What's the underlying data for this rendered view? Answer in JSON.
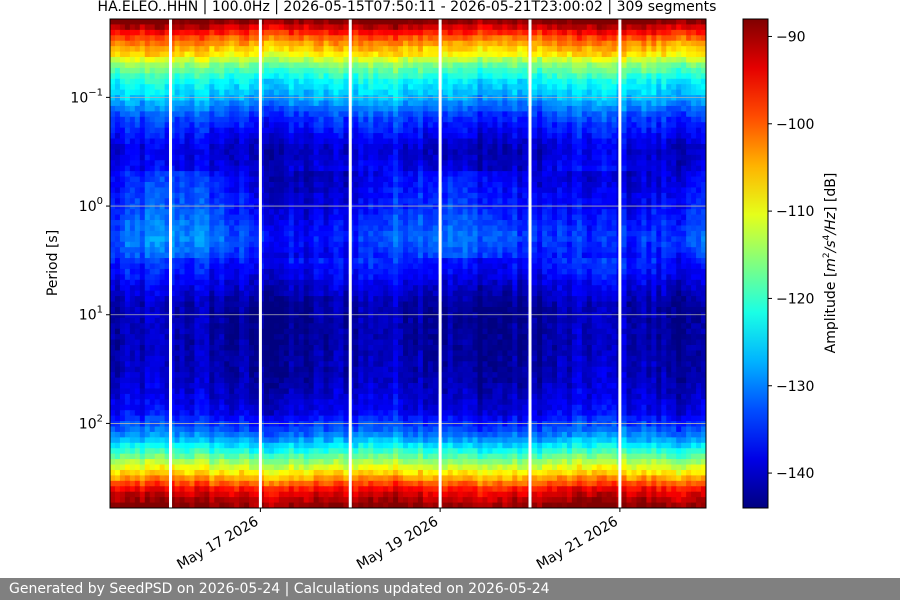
{
  "chart_data": {
    "type": "heatmap",
    "title": "HA.ELEO..HHN | 100.0Hz | 2026-05-15T07:50:11 - 2026-05-21T23:00:02 | 309 segments",
    "ylabel": "Period [s]",
    "y_scale": "log",
    "y_inverted": true,
    "ylim": [
      0.019,
      600
    ],
    "y_ticks": [
      {
        "value": 0.1,
        "base": "10",
        "exp": "−1"
      },
      {
        "value": 1,
        "base": "10",
        "exp": "0"
      },
      {
        "value": 10,
        "base": "10",
        "exp": "1"
      },
      {
        "value": 100,
        "base": "10",
        "exp": "2"
      }
    ],
    "xlim": [
      "2026-05-15T07:50:11",
      "2026-05-21T23:00:02"
    ],
    "x_ticks": [
      {
        "value": "2026-05-17",
        "label": "May 17 2026"
      },
      {
        "value": "2026-05-19",
        "label": "May 19 2026"
      },
      {
        "value": "2026-05-21",
        "label": "May 21 2026"
      }
    ],
    "grid": "horizontal",
    "gaps": [
      "2026-05-16",
      "2026-05-17",
      "2026-05-18",
      "2026-05-19",
      "2026-05-20",
      "2026-05-21"
    ],
    "colormap": "jet",
    "colorbar": {
      "label_prefix": "Amplitude [",
      "label_unit": "m",
      "label_unit_exp": "2",
      "label_unit_mid": "/s",
      "label_unit_exp2": "4",
      "label_unit_end": "/Hz",
      "label_suffix": "] [dB]",
      "range": [
        -144,
        -88
      ],
      "ticks": [
        -90,
        -100,
        -110,
        -120,
        -130,
        -140
      ],
      "tick_labels": [
        "−90",
        "−100",
        "−110",
        "−120",
        "−130",
        "−140"
      ]
    },
    "period_profile": [
      {
        "period": 0.02,
        "db": -88
      },
      {
        "period": 0.03,
        "db": -102
      },
      {
        "period": 0.04,
        "db": -108
      },
      {
        "period": 0.05,
        "db": -116
      },
      {
        "period": 0.07,
        "db": -123
      },
      {
        "period": 0.1,
        "db": -127
      },
      {
        "period": 0.15,
        "db": -134
      },
      {
        "period": 0.3,
        "db": -140
      },
      {
        "period": 1.0,
        "db": -136
      },
      {
        "period": 2.0,
        "db": -133
      },
      {
        "period": 4.0,
        "db": -137
      },
      {
        "period": 8.0,
        "db": -142
      },
      {
        "period": 20.0,
        "db": -142
      },
      {
        "period": 40.0,
        "db": -141
      },
      {
        "period": 80.0,
        "db": -138
      },
      {
        "period": 130.0,
        "db": -130
      },
      {
        "period": 200.0,
        "db": -118
      },
      {
        "period": 300.0,
        "db": -106
      },
      {
        "period": 420.0,
        "db": -94
      },
      {
        "period": 600.0,
        "db": -88
      }
    ]
  },
  "footer": {
    "text": "Generated by SeedPSD on 2026-05-24 | Calculations updated on 2026-05-24"
  }
}
